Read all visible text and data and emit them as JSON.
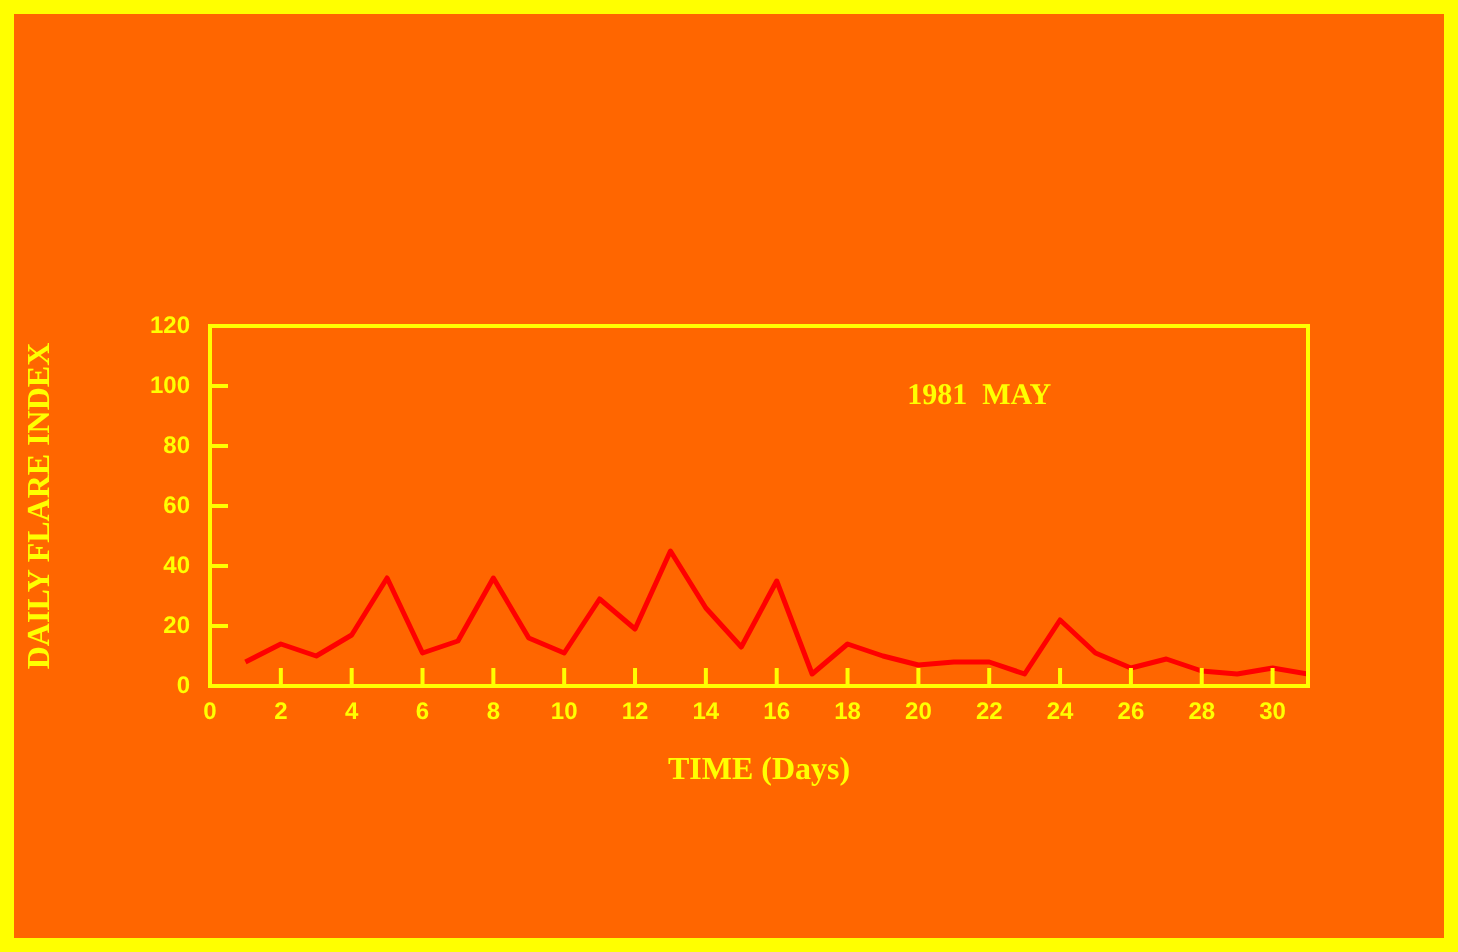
{
  "chart_data": {
    "type": "line",
    "xlabel": "TIME (Days)",
    "ylabel": "DAILY FLARE INDEX",
    "annotations": [
      "1981  MAY"
    ],
    "x": [
      1,
      2,
      3,
      4,
      5,
      6,
      7,
      8,
      9,
      10,
      11,
      12,
      13,
      14,
      15,
      16,
      17,
      18,
      19,
      20,
      21,
      22,
      23,
      24,
      25,
      26,
      27,
      28,
      29,
      30,
      31
    ],
    "series": [
      {
        "color": "#ff0000",
        "values": [
          8,
          14,
          10,
          17,
          36,
          11,
          15,
          36,
          16,
          11,
          29,
          19,
          45,
          26,
          13,
          35,
          4,
          14,
          10,
          7,
          8,
          8,
          4,
          22,
          11,
          6,
          9,
          5,
          4,
          6,
          4
        ]
      }
    ],
    "xlim": [
      0,
      31
    ],
    "xticks": [
      0,
      2,
      4,
      6,
      8,
      10,
      12,
      14,
      16,
      18,
      20,
      22,
      24,
      26,
      28,
      30
    ],
    "ylim": [
      0,
      120
    ],
    "yticks": [
      0,
      20,
      40,
      60,
      80,
      100,
      120
    ],
    "grid": false,
    "legend": false,
    "marker": "none",
    "line_style": "solid"
  }
}
